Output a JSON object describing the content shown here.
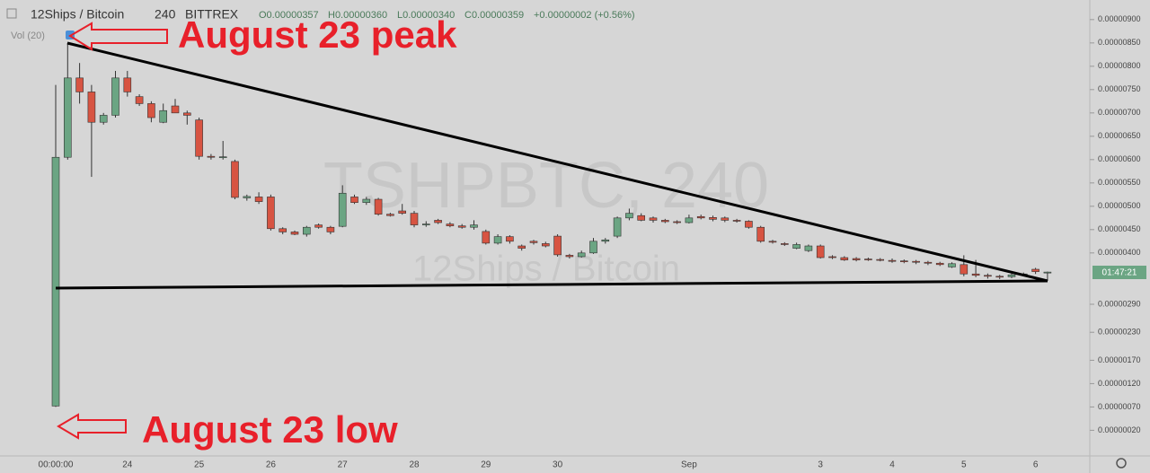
{
  "header": {
    "symbol": "12Ships / Bitcoin",
    "interval": "240",
    "exchange": "BITTREX",
    "ohlc": [
      "O0.00000357",
      "H0.00000360",
      "L0.00000340",
      "C0.00000359"
    ],
    "change": "+0.00000002 (+0.56%)",
    "indicator": "Vol (20)"
  },
  "watermark": {
    "ticker": "TSHPBTC, 240",
    "name": "12Ships / Bitcoin"
  },
  "annotations": {
    "peak": "August 23 peak",
    "low": "August 23 low"
  },
  "countdown": "01:47:21",
  "chart_data": {
    "type": "candlestick",
    "categories": [
      "00:00:00",
      null,
      null,
      null,
      null,
      null,
      "24",
      null,
      null,
      null,
      null,
      null,
      "25",
      null,
      null,
      null,
      null,
      null,
      "26",
      null,
      null,
      null,
      null,
      null,
      "27",
      null,
      null,
      null,
      null,
      null,
      "28",
      null,
      null,
      null,
      null,
      null,
      "29",
      null,
      null,
      null,
      null,
      null,
      "30",
      null,
      null,
      null,
      null,
      null,
      null,
      null,
      null,
      null,
      null,
      "Sep",
      null,
      null,
      null,
      null,
      null,
      null,
      null,
      null,
      null,
      null,
      "3",
      null,
      null,
      null,
      null,
      null,
      "4",
      null,
      null,
      null,
      null,
      null,
      "5",
      null,
      null,
      null,
      null,
      null,
      "6",
      null
    ],
    "open": [
      7.2e-07,
      6.05e-06,
      7.75e-06,
      7.45e-06,
      6.8e-06,
      6.95e-06,
      7.75e-06,
      7.35e-06,
      7.2e-06,
      6.8e-06,
      7.15e-06,
      7e-06,
      6.85e-06,
      6.07e-06,
      6.05e-06,
      5.96e-06,
      5.18e-06,
      5.2e-06,
      5.2e-06,
      4.52e-06,
      4.45e-06,
      4.4e-06,
      4.6e-06,
      4.55e-06,
      4.57e-06,
      5.2e-06,
      5.08e-06,
      5.15e-06,
      4.83e-06,
      4.9e-06,
      4.85e-06,
      4.6e-06,
      4.7e-06,
      4.62e-06,
      4.58e-06,
      4.55e-06,
      4.46e-06,
      4.21e-06,
      4.35e-06,
      4.15e-06,
      4.25e-06,
      4.2e-06,
      4.36e-06,
      3.95e-06,
      3.92e-06,
      4e-06,
      4.25e-06,
      4.36e-06,
      4.75e-06,
      4.8e-06,
      4.75e-06,
      4.7e-06,
      4.67e-06,
      4.65e-06,
      4.78e-06,
      4.76e-06,
      4.75e-06,
      4.7e-06,
      4.68e-06,
      4.55e-06,
      4.25e-06,
      4.2e-06,
      4.1e-06,
      4.05e-06,
      4.15e-06,
      3.92e-06,
      3.9e-06,
      3.88e-06,
      3.87e-06,
      3.86e-06,
      3.84e-06,
      3.83e-06,
      3.82e-06,
      3.8e-06,
      3.78e-06,
      3.7e-06,
      3.75e-06,
      3.55e-06,
      3.52e-06,
      3.5e-06,
      3.49e-06,
      3.53e-06,
      3.65e-06,
      3.57e-06
    ],
    "high": [
      7.6e-06,
      8.5e-06,
      8.07e-06,
      7.6e-06,
      7e-06,
      7.9e-06,
      7.9e-06,
      7.4e-06,
      7.25e-06,
      7.2e-06,
      7.3e-06,
      7.05e-06,
      6.9e-06,
      6.12e-06,
      6.4e-06,
      6e-06,
      5.25e-06,
      5.3e-06,
      5.25e-06,
      4.55e-06,
      4.48e-06,
      4.58e-06,
      4.63e-06,
      4.58e-06,
      5.45e-06,
      5.25e-06,
      5.2e-06,
      5.18e-06,
      4.86e-06,
      5.05e-06,
      4.9e-06,
      4.68e-06,
      4.73e-06,
      4.66e-06,
      4.62e-06,
      4.7e-06,
      4.5e-06,
      4.4e-06,
      4.38e-06,
      4.18e-06,
      4.28e-06,
      4.24e-06,
      4.4e-06,
      3.98e-06,
      4.05e-06,
      4.32e-06,
      4.32e-06,
      4.78e-06,
      4.95e-06,
      4.85e-06,
      4.78e-06,
      4.73e-06,
      4.7e-06,
      4.82e-06,
      4.82e-06,
      4.8e-06,
      4.78e-06,
      4.73e-06,
      4.7e-06,
      4.58e-06,
      4.28e-06,
      4.23e-06,
      4.22e-06,
      4.18e-06,
      4.18e-06,
      3.95e-06,
      3.93e-06,
      3.91e-06,
      3.9e-06,
      3.89e-06,
      3.88e-06,
      3.86e-06,
      3.85e-06,
      3.83e-06,
      3.81e-06,
      3.8e-06,
      3.95e-06,
      3.85e-06,
      3.56e-06,
      3.53e-06,
      3.56e-06,
      3.58e-06,
      3.68e-06,
      3.6e-06
    ],
    "low": [
      7e-07,
      6e-06,
      7.2e-06,
      5.63e-06,
      6.75e-06,
      6.9e-06,
      7.35e-06,
      7.15e-06,
      6.8e-06,
      6.78e-06,
      7e-06,
      6.75e-06,
      6e-06,
      6e-06,
      6e-06,
      5.15e-06,
      5.12e-06,
      5.05e-06,
      4.48e-06,
      4.4e-06,
      4.38e-06,
      4.35e-06,
      4.52e-06,
      4.4e-06,
      4.55e-06,
      5.05e-06,
      5.03e-06,
      4.8e-06,
      4.78e-06,
      4.82e-06,
      4.55e-06,
      4.56e-06,
      4.62e-06,
      4.55e-06,
      4.52e-06,
      4.5e-06,
      4.18e-06,
      4.18e-06,
      4.2e-06,
      4.05e-06,
      4.18e-06,
      4.12e-06,
      3.92e-06,
      3.88e-06,
      3.9e-06,
      3.98e-06,
      4.2e-06,
      4.32e-06,
      4.7e-06,
      4.68e-06,
      4.65e-06,
      4.64e-06,
      4.62e-06,
      4.63e-06,
      4.72e-06,
      4.68e-06,
      4.66e-06,
      4.65e-06,
      4.52e-06,
      4.22e-06,
      4.2e-06,
      4.15e-06,
      4.08e-06,
      4.02e-06,
      3.88e-06,
      3.87e-06,
      3.83e-06,
      3.82e-06,
      3.83e-06,
      3.82e-06,
      3.79e-06,
      3.78e-06,
      3.76e-06,
      3.74e-06,
      3.72e-06,
      3.68e-06,
      3.5e-06,
      3.48e-06,
      3.45e-06,
      3.44e-06,
      3.46e-06,
      3.5e-06,
      3.55e-06,
      3.4e-06
    ],
    "close": [
      6.05e-06,
      7.75e-06,
      7.45e-06,
      6.8e-06,
      6.95e-06,
      7.75e-06,
      7.45e-06,
      7.2e-06,
      6.9e-06,
      7.05e-06,
      7e-06,
      6.95e-06,
      6.07e-06,
      6.05e-06,
      6.06e-06,
      5.19e-06,
      5.21e-06,
      5.1e-06,
      4.52e-06,
      4.45e-06,
      4.4e-06,
      4.55e-06,
      4.55e-06,
      4.45e-06,
      5.28e-06,
      5.08e-06,
      5.15e-06,
      4.83e-06,
      4.8e-06,
      4.85e-06,
      4.6e-06,
      4.62e-06,
      4.65e-06,
      4.58e-06,
      4.55e-06,
      4.6e-06,
      4.21e-06,
      4.35e-06,
      4.25e-06,
      4.1e-06,
      4.22e-06,
      4.15e-06,
      3.96e-06,
      3.92e-06,
      4e-06,
      4.25e-06,
      4.28e-06,
      4.75e-06,
      4.85e-06,
      4.7e-06,
      4.7e-06,
      4.67e-06,
      4.65e-06,
      4.75e-06,
      4.75e-06,
      4.72e-06,
      4.7e-06,
      4.68e-06,
      4.55e-06,
      4.25e-06,
      4.23e-06,
      4.18e-06,
      4.18e-06,
      4.15e-06,
      3.9e-06,
      3.9e-06,
      3.85e-06,
      3.85e-06,
      3.86e-06,
      3.85e-06,
      3.82e-06,
      3.81e-06,
      3.8e-06,
      3.78e-06,
      3.75e-06,
      3.77e-06,
      3.55e-06,
      3.52e-06,
      3.5e-06,
      3.49e-06,
      3.53e-06,
      3.55e-06,
      3.6e-06,
      3.59e-06
    ],
    "up_color": "#6ba583",
    "down_color": "#d75442",
    "ylim": [
      -3.5e-07,
      9.42e-06
    ],
    "yticks": [
      {
        "value": 9e-06,
        "label": "0.00000900"
      },
      {
        "value": 8.5e-06,
        "label": "0.00000850"
      },
      {
        "value": 8e-06,
        "label": "0.00000800"
      },
      {
        "value": 7.5e-06,
        "label": "0.00000750"
      },
      {
        "value": 7e-06,
        "label": "0.00000700"
      },
      {
        "value": 6.5e-06,
        "label": "0.00000650"
      },
      {
        "value": 6e-06,
        "label": "0.00000600"
      },
      {
        "value": 5.5e-06,
        "label": "0.00000550"
      },
      {
        "value": 5e-06,
        "label": "0.00000500"
      },
      {
        "value": 4.5e-06,
        "label": "0.00000450"
      },
      {
        "value": 4e-06,
        "label": "0.00000400"
      },
      {
        "value": 2.9e-06,
        "label": "0.00000290"
      },
      {
        "value": 2.3e-06,
        "label": "0.00000230"
      },
      {
        "value": 1.7e-06,
        "label": "0.00000170"
      },
      {
        "value": 1.2e-06,
        "label": "0.00000120"
      },
      {
        "value": 7e-07,
        "label": "0.00000070"
      },
      {
        "value": 2e-07,
        "label": "0.00000020"
      }
    ]
  }
}
